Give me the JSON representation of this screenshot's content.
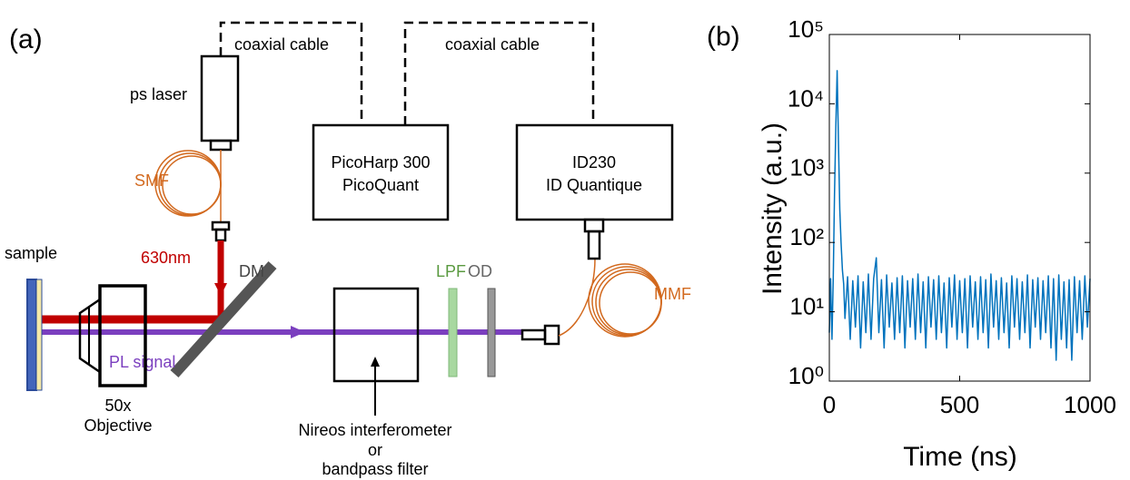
{
  "diagram": {
    "panel_label": "(a)",
    "cable_labels": [
      "coaxial cable",
      "coaxial cable"
    ],
    "laser": "ps laser",
    "smf": "SMF",
    "wavelength": "630nm",
    "dm": "DM",
    "sample": "sample",
    "objective": [
      "50x",
      "Objective"
    ],
    "pl_signal": "PL signal",
    "picoharp": [
      "PicoHarp 300",
      "PicoQuant"
    ],
    "id230": [
      "ID230",
      "ID Quantique"
    ],
    "lpf": "LPF",
    "od": "OD",
    "mmf": "MMF",
    "interferometer": [
      "Nireos interferometer",
      "or",
      "bandpass filter"
    ]
  },
  "chart_data": {
    "type": "line",
    "panel_label": "(b)",
    "xlabel": "Time (ns)",
    "ylabel": "Intensity (a.u.)",
    "log_y": true,
    "xlim": [
      0,
      1000
    ],
    "ylim": [
      1,
      100000
    ],
    "xticks": [
      0,
      500,
      1000
    ],
    "yticks": [
      {
        "value": 1,
        "label": "10⁰"
      },
      {
        "value": 10,
        "label": "10¹"
      },
      {
        "value": 100,
        "label": "10²"
      },
      {
        "value": 1000,
        "label": "10³"
      },
      {
        "value": 10000,
        "label": "10⁴"
      },
      {
        "value": 100000,
        "label": "10⁵"
      }
    ],
    "series": [
      {
        "color": "#0072bd",
        "x": [
          0,
          5,
          10,
          15,
          20,
          25,
          30,
          35,
          40,
          45,
          50,
          55,
          60,
          70,
          80,
          90,
          100,
          110,
          120,
          130,
          140,
          150,
          160,
          170,
          180,
          190,
          200,
          210,
          220,
          230,
          240,
          250,
          260,
          270,
          280,
          290,
          300,
          310,
          320,
          330,
          340,
          350,
          360,
          370,
          380,
          390,
          400,
          410,
          420,
          430,
          440,
          450,
          460,
          470,
          480,
          490,
          500,
          510,
          520,
          530,
          540,
          550,
          560,
          570,
          580,
          590,
          600,
          610,
          620,
          630,
          640,
          650,
          660,
          670,
          680,
          690,
          700,
          710,
          720,
          730,
          740,
          750,
          760,
          770,
          780,
          790,
          800,
          810,
          820,
          830,
          840,
          850,
          860,
          870,
          880,
          890,
          900,
          910,
          920,
          930,
          940,
          950,
          960,
          970,
          980,
          990,
          1000
        ],
        "values": [
          5,
          30,
          4,
          30,
          500,
          5000,
          30000,
          3000,
          300,
          100,
          40,
          25,
          8,
          32,
          4,
          28,
          6,
          33,
          3,
          27,
          5,
          35,
          4,
          30,
          60,
          5,
          29,
          3,
          34,
          6,
          26,
          4,
          31,
          5,
          33,
          3,
          28,
          6,
          30,
          4,
          35,
          5,
          27,
          3,
          32,
          6,
          29,
          4,
          33,
          5,
          26,
          3,
          31,
          6,
          34,
          4,
          28,
          5,
          30,
          3,
          33,
          6,
          27,
          4,
          32,
          5,
          29,
          3,
          35,
          6,
          28,
          4,
          31,
          5,
          26,
          3,
          33,
          6,
          30,
          4,
          27,
          5,
          34,
          3,
          29,
          6,
          31,
          4,
          28,
          5,
          33,
          3,
          30,
          2,
          34,
          4,
          27,
          3,
          29,
          2,
          32,
          5,
          28,
          4,
          33,
          6,
          30
        ]
      }
    ]
  }
}
